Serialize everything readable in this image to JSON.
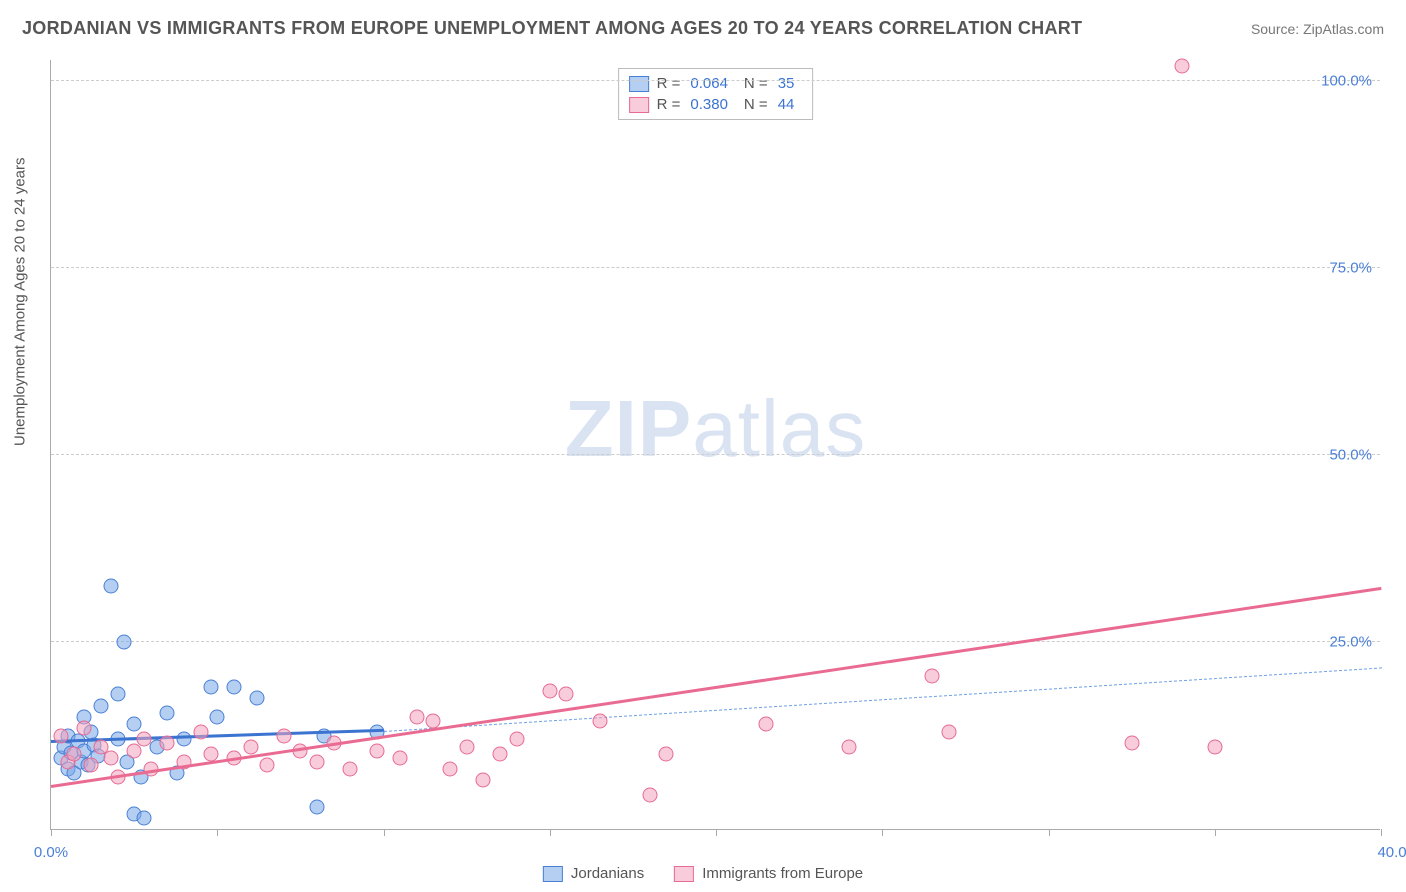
{
  "title": "JORDANIAN VS IMMIGRANTS FROM EUROPE UNEMPLOYMENT AMONG AGES 20 TO 24 YEARS CORRELATION CHART",
  "source": "Source: ZipAtlas.com",
  "watermark_bold": "ZIP",
  "watermark_light": "atlas",
  "chart": {
    "type": "scatter",
    "y_axis_title": "Unemployment Among Ages 20 to 24 years",
    "xlim": [
      0,
      40
    ],
    "ylim": [
      0,
      103
    ],
    "x_ticks": [
      0,
      5,
      10,
      15,
      20,
      25,
      30,
      35,
      40
    ],
    "y_ticks": [
      25,
      50,
      75,
      100
    ],
    "y_tick_labels": [
      "25.0%",
      "50.0%",
      "75.0%",
      "100.0%"
    ],
    "x_min_label": "0.0%",
    "x_max_label": "40.0%",
    "grid_color": "#cccccc",
    "axis_color": "#aaaaaa",
    "background": "#ffffff",
    "marker_size": 15,
    "series": [
      {
        "name": "Jordanians",
        "fill": "rgba(119,167,231,0.55)",
        "stroke": "#4a7fd6",
        "r_label": "R =",
        "r_value": "0.064",
        "n_label": "N =",
        "n_value": "35",
        "trend": {
          "x1": 0,
          "y1": 11.5,
          "x2": 10,
          "y2": 13.0,
          "dash": false,
          "width": 3,
          "color": "#3b73d1"
        },
        "trend_ext": {
          "x1": 10,
          "y1": 13.0,
          "x2": 40,
          "y2": 21.5,
          "dash": true,
          "width": 1.5,
          "color": "#6fa0e6"
        },
        "points": [
          [
            0.3,
            9.5
          ],
          [
            0.4,
            11.0
          ],
          [
            0.5,
            8.0
          ],
          [
            0.5,
            12.5
          ],
          [
            0.6,
            10.2
          ],
          [
            0.7,
            7.5
          ],
          [
            0.8,
            11.8
          ],
          [
            0.9,
            9.0
          ],
          [
            1.0,
            10.5
          ],
          [
            1.0,
            15.0
          ],
          [
            1.1,
            8.5
          ],
          [
            1.2,
            13.0
          ],
          [
            1.3,
            11.2
          ],
          [
            1.4,
            9.8
          ],
          [
            1.5,
            16.5
          ],
          [
            1.8,
            32.5
          ],
          [
            2.0,
            18.0
          ],
          [
            2.0,
            12.0
          ],
          [
            2.2,
            25.0
          ],
          [
            2.3,
            9.0
          ],
          [
            2.5,
            2.0
          ],
          [
            2.5,
            14.0
          ],
          [
            2.7,
            7.0
          ],
          [
            2.8,
            1.5
          ],
          [
            3.2,
            11.0
          ],
          [
            3.5,
            15.5
          ],
          [
            3.8,
            7.5
          ],
          [
            4.0,
            12.0
          ],
          [
            4.8,
            19.0
          ],
          [
            5.0,
            15.0
          ],
          [
            5.5,
            19.0
          ],
          [
            6.2,
            17.5
          ],
          [
            8.0,
            3.0
          ],
          [
            8.2,
            12.5
          ],
          [
            9.8,
            13.0
          ]
        ]
      },
      {
        "name": "Immigrants from Europe",
        "fill": "rgba(242,162,187,0.55)",
        "stroke": "#e76a94",
        "r_label": "R =",
        "r_value": "0.380",
        "n_label": "N =",
        "n_value": "44",
        "trend": {
          "x1": 0,
          "y1": 5.5,
          "x2": 40,
          "y2": 32.0,
          "dash": false,
          "width": 3,
          "color": "#ea6b92"
        },
        "points": [
          [
            0.3,
            12.5
          ],
          [
            0.5,
            9.0
          ],
          [
            0.7,
            10.0
          ],
          [
            1.0,
            13.5
          ],
          [
            1.2,
            8.5
          ],
          [
            1.5,
            11.0
          ],
          [
            1.8,
            9.5
          ],
          [
            2.0,
            7.0
          ],
          [
            2.5,
            10.5
          ],
          [
            2.8,
            12.0
          ],
          [
            3.0,
            8.0
          ],
          [
            3.5,
            11.5
          ],
          [
            4.0,
            9.0
          ],
          [
            4.5,
            13.0
          ],
          [
            4.8,
            10.0
          ],
          [
            5.5,
            9.5
          ],
          [
            6.0,
            11.0
          ],
          [
            6.5,
            8.5
          ],
          [
            7.0,
            12.5
          ],
          [
            7.5,
            10.5
          ],
          [
            8.0,
            9.0
          ],
          [
            8.5,
            11.5
          ],
          [
            9.0,
            8.0
          ],
          [
            9.8,
            10.5
          ],
          [
            10.5,
            9.5
          ],
          [
            11.0,
            15.0
          ],
          [
            11.5,
            14.5
          ],
          [
            12.0,
            8.0
          ],
          [
            12.5,
            11.0
          ],
          [
            13.0,
            6.5
          ],
          [
            13.5,
            10.0
          ],
          [
            14.0,
            12.0
          ],
          [
            15.0,
            18.5
          ],
          [
            15.5,
            18.0
          ],
          [
            16.5,
            14.5
          ],
          [
            18.0,
            4.5
          ],
          [
            18.5,
            10.0
          ],
          [
            21.5,
            14.0
          ],
          [
            24.0,
            11.0
          ],
          [
            26.5,
            20.5
          ],
          [
            27.0,
            13.0
          ],
          [
            32.5,
            11.5
          ],
          [
            35.0,
            11.0
          ],
          [
            34.0,
            102.0
          ]
        ]
      }
    ]
  }
}
